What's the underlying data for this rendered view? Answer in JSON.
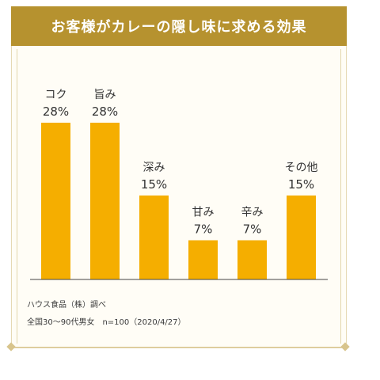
{
  "chart_data": {
    "type": "bar",
    "title": "お客様がカレーの隠し味に求める効果",
    "categories": [
      "コク",
      "旨み",
      "深み",
      "甘み",
      "辛み",
      "その他"
    ],
    "values": [
      28,
      28,
      15,
      7,
      7,
      15
    ],
    "value_labels": [
      "28%",
      "28%",
      "15%",
      "7%",
      "7%",
      "15%"
    ],
    "unit": "%",
    "ylim": [
      0,
      28
    ],
    "grid": false,
    "bar_color": "#f5ae00",
    "title_bar_color": "#b6922f",
    "xlabel": "",
    "ylabel": ""
  },
  "footer": {
    "source": "ハウス食品（株）調べ",
    "sample": "全国30～90代男女　n=100（2020/4/27）"
  }
}
